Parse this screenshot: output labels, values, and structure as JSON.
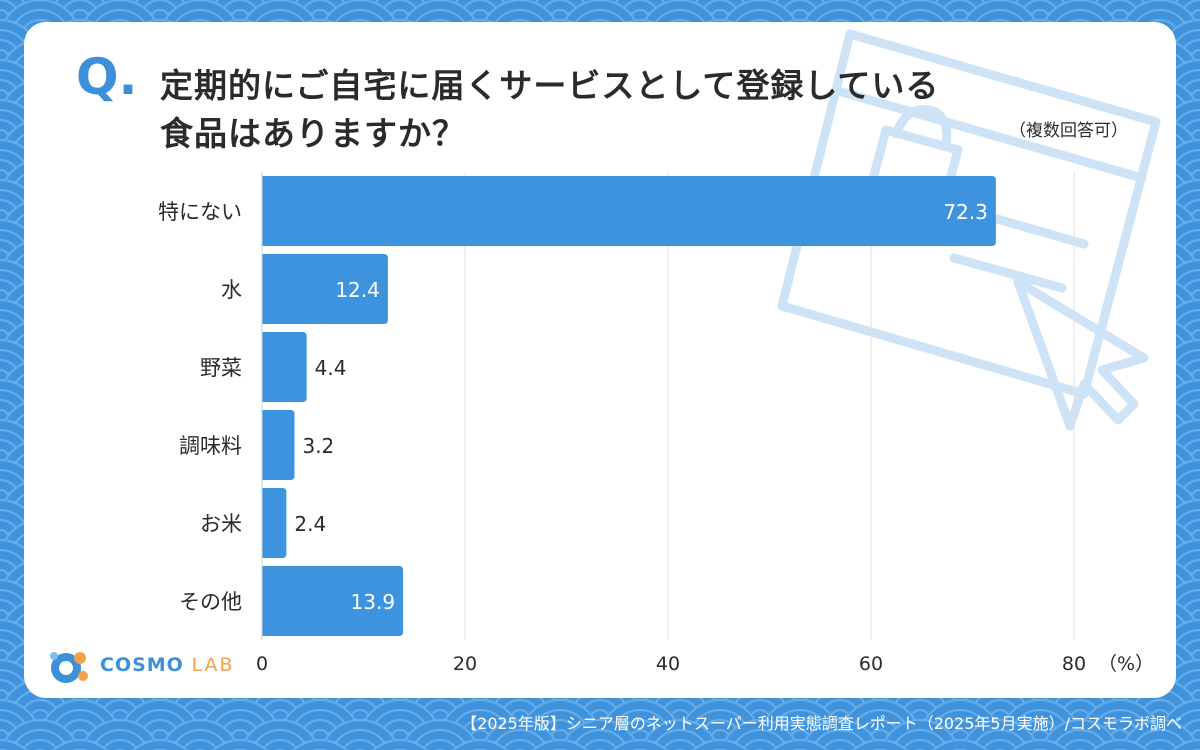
{
  "question_mark": "Q.",
  "title_line1": "定期的にご自宅に届くサービスとして登録している",
  "title_line2": "食品はありますか？",
  "note": "（複数回答可）",
  "logo": {
    "main": "COSMO",
    "sub": "LAB"
  },
  "footer": "【2025年版】シニア層のネットスーパー利用実態調査レポート（2025年5月実施）/コスモラボ調べ",
  "colors": {
    "bar": "#3d93de",
    "background": "#3f93dc",
    "accent": "#3d8fd9"
  },
  "chart_data": {
    "type": "bar",
    "orientation": "horizontal",
    "categories": [
      "特にない",
      "水",
      "野菜",
      "調味料",
      "お米",
      "その他"
    ],
    "values": [
      72.3,
      12.4,
      4.4,
      3.2,
      2.4,
      13.9
    ],
    "value_labels": [
      "72.3",
      "12.4",
      "4.4",
      "3.2",
      "2.4",
      "13.9"
    ],
    "xlim": [
      0,
      80
    ],
    "xticks": [
      0,
      20,
      40,
      60,
      80
    ],
    "tick_labels": [
      "0",
      "20",
      "40",
      "60",
      "80"
    ],
    "unit": "（%）",
    "grid": true
  }
}
